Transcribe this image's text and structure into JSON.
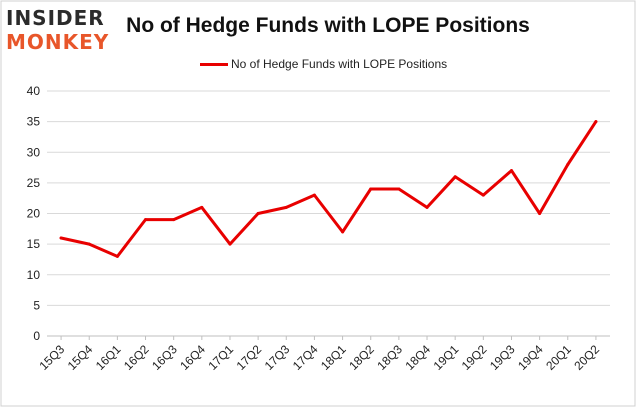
{
  "branding": {
    "logo_line1": "INSIDER",
    "logo_line2": "MONKEY"
  },
  "chart_data": {
    "type": "line",
    "title": "No of Hedge Funds with LOPE Positions",
    "categories": [
      "15Q3",
      "15Q4",
      "16Q1",
      "16Q2",
      "16Q3",
      "16Q4",
      "17Q1",
      "17Q2",
      "17Q3",
      "17Q4",
      "18Q1",
      "18Q2",
      "18Q3",
      "18Q4",
      "19Q1",
      "19Q2",
      "19Q3",
      "19Q4",
      "20Q1",
      "20Q2"
    ],
    "series": [
      {
        "name": "No of Hedge Funds with LOPE Positions",
        "color": "#e80000",
        "values": [
          16,
          15,
          13,
          19,
          19,
          21,
          15,
          20,
          21,
          23,
          17,
          24,
          24,
          21,
          26,
          23,
          27,
          20,
          28,
          35
        ]
      }
    ],
    "xlabel": "",
    "ylabel": "",
    "ylim": [
      0,
      40
    ],
    "yticks": [
      0,
      5,
      10,
      15,
      20,
      25,
      30,
      35,
      40
    ],
    "grid": true,
    "legend_position": "top"
  }
}
